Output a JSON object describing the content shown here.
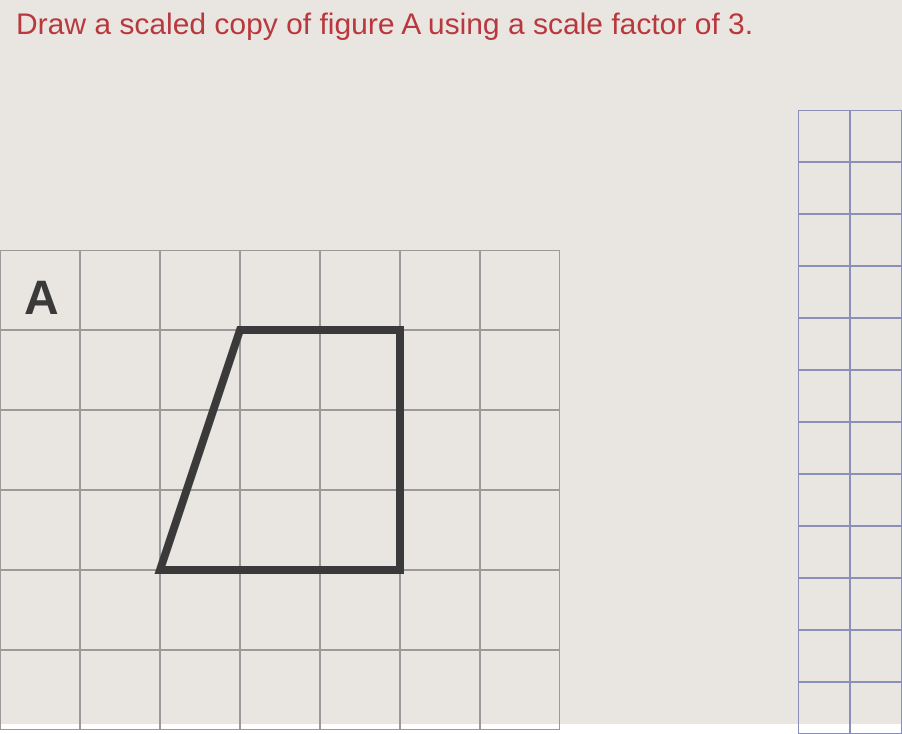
{
  "instruction": {
    "text": "Draw a scaled copy of figure A using a scale factor of 3.",
    "color": "#b8383e",
    "fontsize": 30
  },
  "background": {
    "color": "#e9e6e1"
  },
  "left_grid": {
    "cell_size": 80,
    "cols": 7,
    "rows": 6,
    "line_color": "#9a9a9a",
    "line_width": 2,
    "label": "A",
    "label_fontsize": 48,
    "label_color": "#3a3a3a",
    "label_cell": {
      "col": 0,
      "row": 0
    },
    "figure": {
      "type": "polygon",
      "stroke": "#3a3a3a",
      "stroke_width": 8,
      "fill": "none",
      "points_grid_units": [
        [
          3,
          1
        ],
        [
          5,
          1
        ],
        [
          5,
          4
        ],
        [
          2,
          4
        ]
      ]
    }
  },
  "right_grid": {
    "cell_size": 52,
    "cols": 2,
    "rows": 12,
    "line_color": "#8a8fb8",
    "line_width": 2
  }
}
